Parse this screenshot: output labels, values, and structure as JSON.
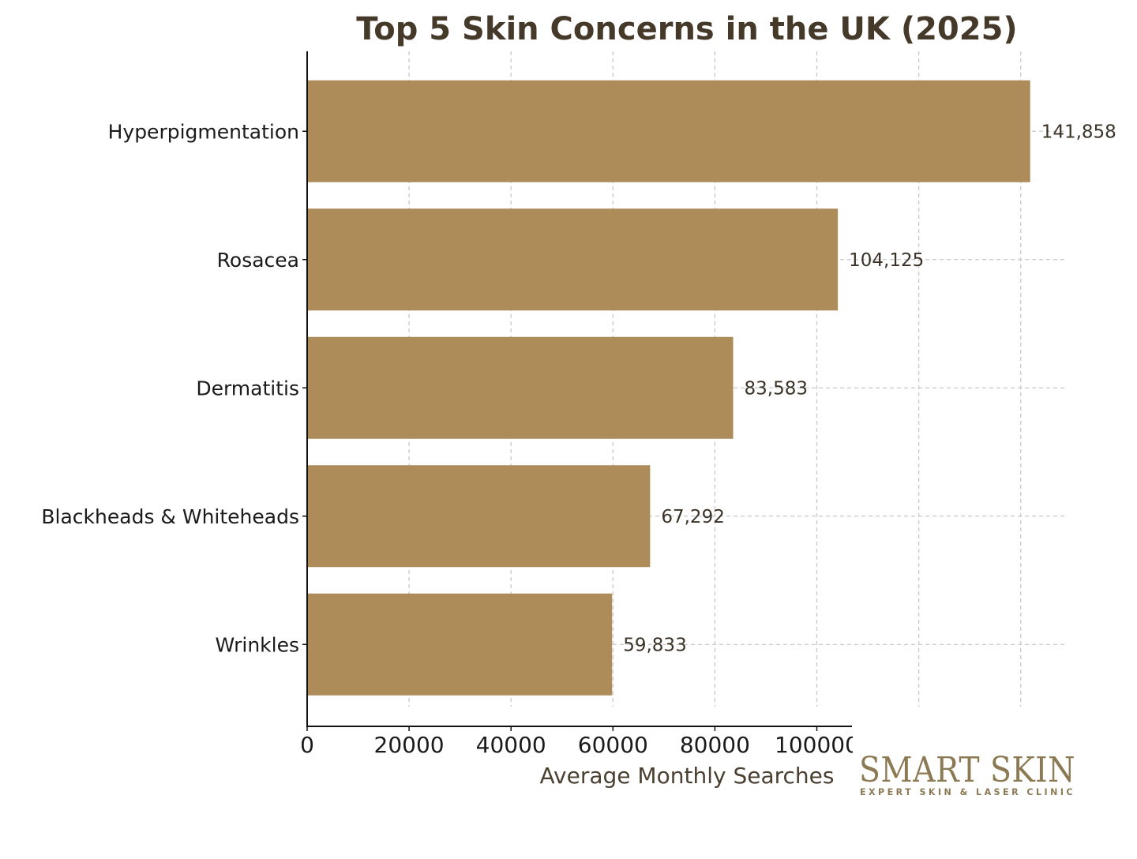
{
  "chart_data": {
    "type": "bar",
    "orientation": "horizontal",
    "title": "Top 5 Skin Concerns in the UK (2025)",
    "xlabel": "Average Monthly Searches",
    "ylabel": "",
    "categories": [
      "Hyperpigmentation",
      "Rosacea",
      "Dermatitis",
      "Blackheads & Whiteheads",
      "Wrinkles"
    ],
    "values": [
      141858,
      104125,
      83583,
      67292,
      59833
    ],
    "value_labels": [
      "141,858",
      "104,125",
      "83,583",
      "67,292",
      "59,833"
    ],
    "xlim": [
      0,
      150000
    ],
    "x_ticks": [
      0,
      20000,
      40000,
      60000,
      80000,
      100000
    ],
    "x_tick_labels": [
      "0",
      "20000",
      "40000",
      "60000",
      "80000",
      "100000"
    ],
    "grid": true,
    "legend": "none"
  },
  "colors": {
    "bar": "#ae8c59",
    "title": "#45392a",
    "axis": "#111111",
    "grid": "#c8c8c8",
    "category_text": "#1a1a1a",
    "value_text": "#3c3328",
    "xlabel_text": "#4a3f30",
    "logo": "#8c7a55"
  },
  "logo": {
    "main": "SMART SKIN",
    "sub": "EXPERT SKIN & LASER CLINIC"
  }
}
